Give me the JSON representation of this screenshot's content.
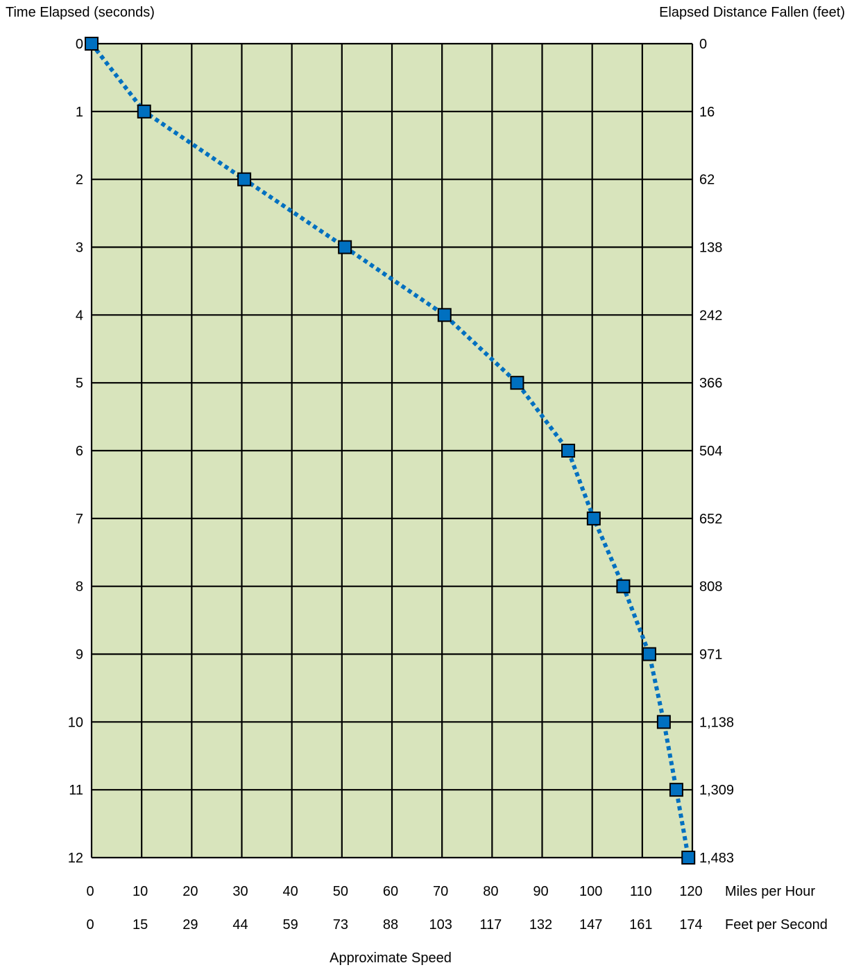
{
  "chart_data": {
    "type": "line",
    "left_axis_title": "Time Elapsed (seconds)",
    "right_axis_title": "Elapsed Distance Fallen (feet)",
    "bottom_axis_title": "Approximate Speed",
    "bottom_row1_unit": "Miles per Hour",
    "bottom_row2_unit": "Feet per Second",
    "time_ticks": [
      "0",
      "1",
      "2",
      "3",
      "4",
      "5",
      "6",
      "7",
      "8",
      "9",
      "10",
      "11",
      "12"
    ],
    "distance_ticks": [
      "0",
      "16",
      "62",
      "138",
      "242",
      "366",
      "504",
      "652",
      "808",
      "971",
      "1,138",
      "1,309",
      "1,483"
    ],
    "mph_ticks": [
      "0",
      "10",
      "20",
      "30",
      "40",
      "50",
      "60",
      "70",
      "80",
      "90",
      "100",
      "110",
      "120"
    ],
    "fps_ticks": [
      "0",
      "15",
      "29",
      "44",
      "59",
      "73",
      "88",
      "103",
      "117",
      "132",
      "147",
      "161",
      "174"
    ],
    "xlim": [
      0,
      120
    ],
    "ylim": [
      0,
      12
    ],
    "y_inverted": true,
    "grid": true,
    "series": [
      {
        "x": [
          0,
          10.5,
          30.5,
          50.6,
          70.5,
          85,
          95.2,
          100.3,
          106.2,
          111.4,
          114.3,
          116.8,
          119.2
        ],
        "y": [
          0,
          1,
          2,
          3,
          4,
          5,
          6,
          7,
          8,
          9,
          10,
          11,
          12
        ],
        "line_style": "dotted"
      }
    ],
    "colors": {
      "plot_bg": "#d8e4bc",
      "grid": "#000000",
      "line": "#0070c0",
      "marker": "#0070c0"
    }
  }
}
